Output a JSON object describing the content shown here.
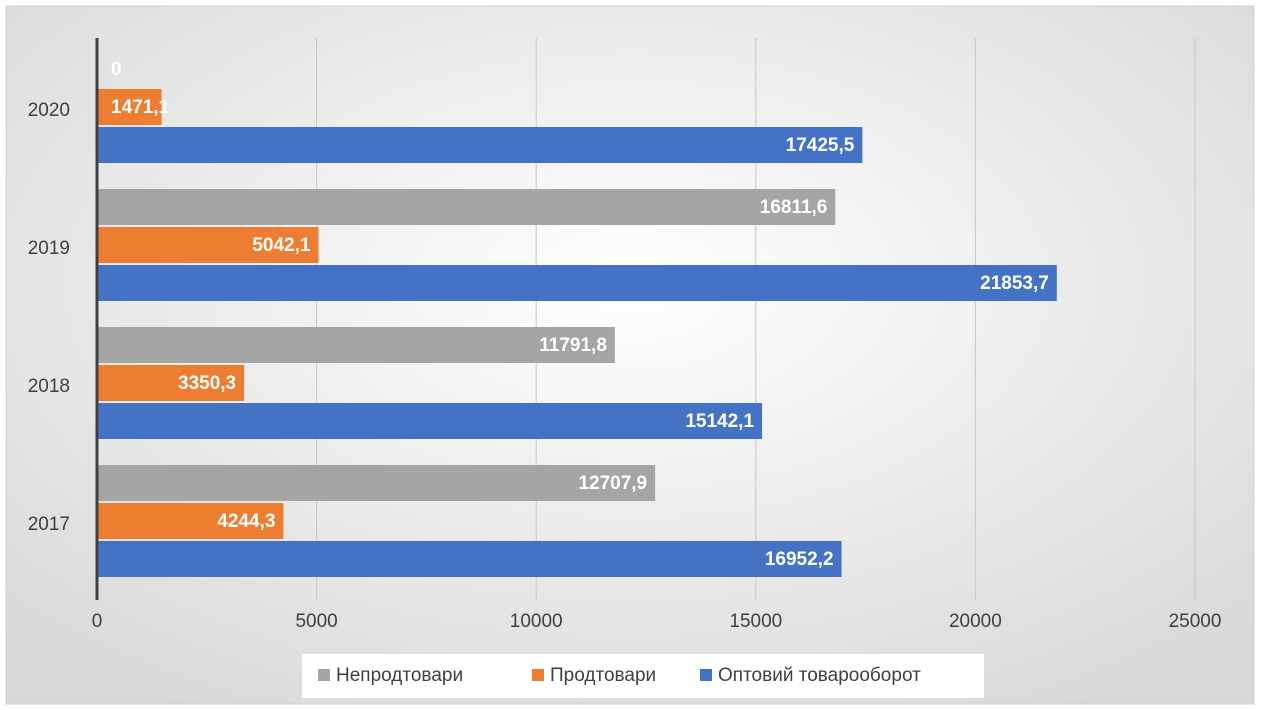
{
  "chart_data": {
    "type": "hbar",
    "categories": [
      "2017",
      "2018",
      "2019",
      "2020"
    ],
    "series": [
      {
        "name": "Непродтовари",
        "color": "#a5a5a5",
        "values": [
          12707.9,
          11791.8,
          16811.6,
          0
        ],
        "value_labels": [
          "12707,9",
          "11791,8",
          "16811,6",
          "0"
        ]
      },
      {
        "name": "Продтовари",
        "color": "#ed7d31",
        "values": [
          4244.3,
          3350.3,
          5042.1,
          1471.1
        ],
        "value_labels": [
          "4244,3",
          "3350,3",
          "5042,1",
          "1471,1"
        ]
      },
      {
        "name": "Оптовий товарооборот",
        "color": "#4472c4",
        "values": [
          16952.2,
          15142.1,
          21853.7,
          17425.5
        ],
        "value_labels": [
          "16952,2",
          "15142,1",
          "21853,7",
          "17425,5"
        ]
      }
    ],
    "xlim": [
      0,
      25000
    ],
    "xticks": [
      0,
      5000,
      10000,
      15000,
      20000,
      25000
    ],
    "grid": true,
    "legend": "bottom"
  }
}
